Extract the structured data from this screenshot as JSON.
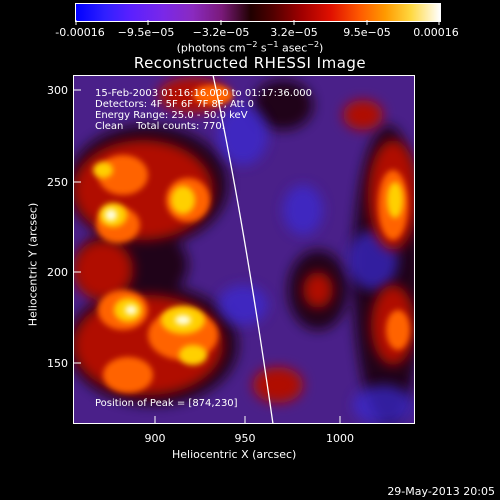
{
  "colorbar": {
    "ticks": [
      "-0.00016",
      "−9.5e−05",
      "−3.2e−05",
      "3.2e−05",
      "9.5e−05",
      "0.00016"
    ],
    "units_pre": "(photons cm",
    "units_sup1": "−2",
    "units_mid1": " s",
    "units_sup2": "−1",
    "units_mid2": " asec",
    "units_sup3": "−2",
    "units_post": ")"
  },
  "title": "Reconstructed RHESSI Image",
  "annotations": {
    "time": "15-Feb-2003 01:16:16.000 to 01:17:36.000",
    "detectors": "Detectors: 4F 5F 6F 7F 8F, Att 0",
    "energy": "Energy Range: 25.0 - 50.0 keV",
    "clean": "Clean    Total counts: 770.",
    "peak": "Position of Peak = [874,230]"
  },
  "axes": {
    "x_title": "Heliocentric X (arcsec)",
    "y_title": "Heliocentric Y (arcsec)",
    "x_ticks": [
      "900",
      "950",
      "1000"
    ],
    "y_ticks": [
      "300",
      "250",
      "200",
      "150"
    ]
  },
  "timestamp": "29-May-2013 20:05",
  "colors": {
    "background": "#000000",
    "foreground": "#ffffff",
    "map_background": "#4a2089"
  }
}
